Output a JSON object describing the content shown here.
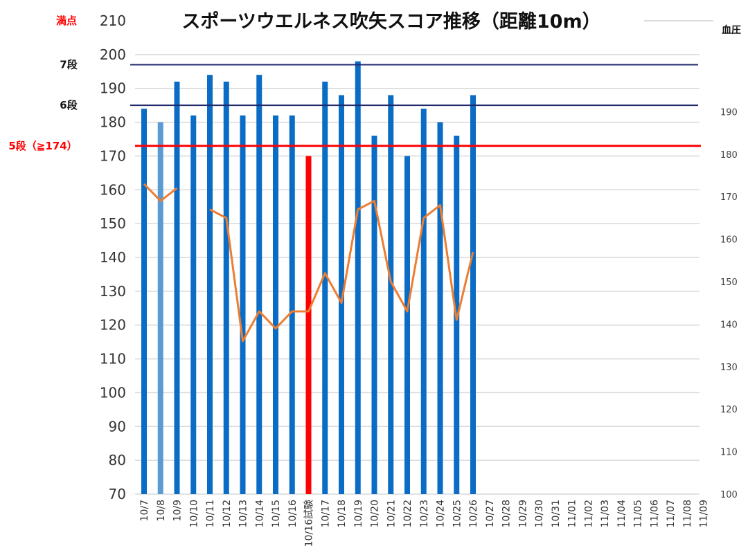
{
  "chart_data": {
    "type": "bar",
    "title": "スポーツウエルネス吹矢スコア推移（距離10m）",
    "categories": [
      "10/7",
      "10/8",
      "10/9",
      "10/10",
      "10/11",
      "10/12",
      "10/13",
      "10/14",
      "10/15",
      "10/16",
      "10/16試験",
      "10/17",
      "10/18",
      "10/19",
      "10/20",
      "10/21",
      "10/22",
      "10/23",
      "10/24",
      "10/25",
      "10/26",
      "10/27",
      "10/28",
      "10/29",
      "10/30",
      "10/31",
      "11/01",
      "11/02",
      "11/03",
      "11/04",
      "11/05",
      "11/06",
      "11/07",
      "11/08",
      "11/09"
    ],
    "series": [
      {
        "type": "bar",
        "axis": "left",
        "values": [
          184,
          180,
          192,
          182,
          194,
          192,
          182,
          194,
          182,
          182,
          170,
          192,
          188,
          198,
          176,
          188,
          170,
          184,
          180,
          176,
          188,
          null,
          null,
          null,
          null,
          null,
          null,
          null,
          null,
          null,
          null,
          null,
          null,
          null,
          null
        ],
        "highlight": {
          "1": "#5b9bd5",
          "10": "#ff0000"
        }
      },
      {
        "name": "血圧",
        "type": "line",
        "axis": "right",
        "values": [
          173,
          169,
          172,
          null,
          167,
          165,
          136,
          143,
          139,
          143,
          143,
          152,
          145,
          167,
          169,
          150,
          143,
          165,
          168,
          141,
          157,
          null,
          null,
          null,
          null,
          null,
          null,
          null,
          null,
          null,
          null,
          null,
          null,
          null,
          null
        ]
      }
    ],
    "ylim": [
      70,
      210
    ],
    "yticks": [
      70,
      80,
      90,
      100,
      110,
      120,
      130,
      140,
      150,
      160,
      170,
      180,
      190,
      200,
      210
    ],
    "y2label": "血圧",
    "y2lim": [
      100,
      200
    ],
    "y2ticks": [
      100,
      110,
      120,
      130,
      140,
      150,
      160,
      170,
      180,
      190
    ],
    "reference_lines": [
      {
        "label": "満点",
        "value": 210,
        "color": "#ff0000"
      },
      {
        "label": "7段",
        "value": 197,
        "color": "#1f2a6b"
      },
      {
        "label": "6段",
        "value": 185,
        "color": "#1f2a6b"
      },
      {
        "label": "5段（≧174）",
        "value": 173,
        "color": "#ff0000"
      }
    ],
    "grid": true,
    "colors": {
      "bar": "#0a6cc4",
      "line": "#ed7d31",
      "grid": "#d9d9d9"
    }
  }
}
